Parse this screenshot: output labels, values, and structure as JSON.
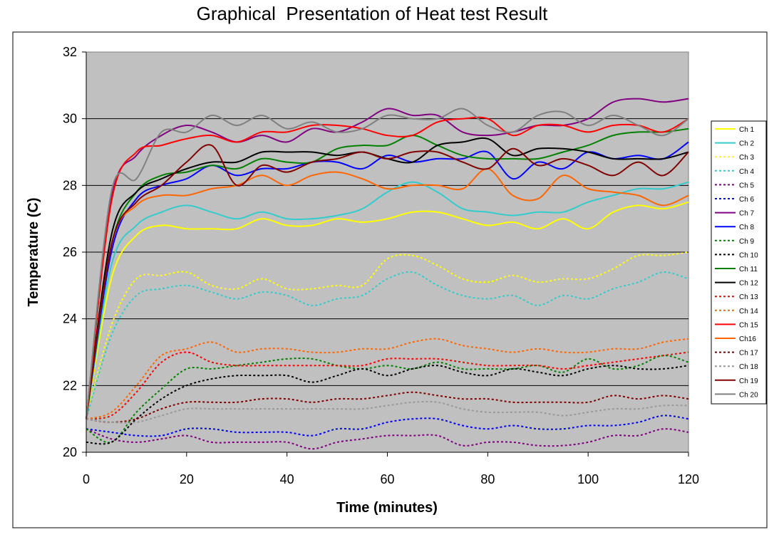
{
  "chart_data": {
    "type": "line",
    "title": "Graphical  Presentation of Heat test Result",
    "xlabel": "Time (minutes)",
    "ylabel": "Temperature (C)",
    "xlim": [
      0,
      120
    ],
    "ylim": [
      20,
      32
    ],
    "x_ticks": [
      "0",
      "20",
      "40",
      "60",
      "80",
      "100",
      "120"
    ],
    "y_ticks": [
      "20",
      "22",
      "24",
      "26",
      "28",
      "30",
      "32"
    ],
    "grid": "horizontal",
    "plot_background": "#c0c0c0",
    "legend_position": "right",
    "x": [
      0,
      5,
      10,
      15,
      20,
      25,
      30,
      35,
      40,
      45,
      50,
      55,
      60,
      65,
      70,
      75,
      80,
      85,
      90,
      95,
      100,
      105,
      110,
      115,
      120
    ],
    "series": [
      {
        "name": "Ch 1",
        "color": "#ffff00",
        "dash": "solid",
        "values": [
          21.0,
          25.2,
          26.5,
          26.8,
          26.7,
          26.7,
          26.7,
          27.0,
          26.8,
          26.8,
          27.0,
          26.9,
          27.0,
          27.2,
          27.2,
          27.0,
          26.8,
          26.9,
          26.7,
          27.0,
          26.7,
          27.2,
          27.4,
          27.3,
          27.5
        ]
      },
      {
        "name": "Ch 2",
        "color": "#33cccc",
        "dash": "solid",
        "values": [
          21.0,
          25.6,
          26.8,
          27.2,
          27.4,
          27.2,
          27.0,
          27.2,
          27.0,
          27.0,
          27.1,
          27.3,
          27.8,
          28.1,
          27.8,
          27.3,
          27.2,
          27.1,
          27.2,
          27.2,
          27.5,
          27.7,
          27.9,
          27.9,
          28.1
        ]
      },
      {
        "name": "Ch 3",
        "color": "#ffff00",
        "dash": "dashed",
        "values": [
          21.0,
          23.8,
          25.2,
          25.3,
          25.4,
          25.0,
          24.9,
          25.2,
          24.9,
          24.9,
          25.0,
          25.0,
          25.8,
          25.9,
          25.6,
          25.2,
          25.1,
          25.3,
          25.1,
          25.2,
          25.2,
          25.5,
          25.9,
          25.9,
          26.0
        ]
      },
      {
        "name": "Ch 4",
        "color": "#33cccc",
        "dash": "dashed",
        "values": [
          21.0,
          23.5,
          24.7,
          24.9,
          25.0,
          24.8,
          24.6,
          24.8,
          24.7,
          24.4,
          24.6,
          24.7,
          25.2,
          25.4,
          25.0,
          24.7,
          24.6,
          24.7,
          24.4,
          24.7,
          24.6,
          24.9,
          25.1,
          25.4,
          25.2
        ]
      },
      {
        "name": "Ch 5",
        "color": "#800080",
        "dash": "dashed",
        "values": [
          20.7,
          20.4,
          20.3,
          20.4,
          20.5,
          20.3,
          20.3,
          20.3,
          20.3,
          20.1,
          20.3,
          20.4,
          20.5,
          20.5,
          20.5,
          20.2,
          20.3,
          20.3,
          20.2,
          20.2,
          20.3,
          20.5,
          20.5,
          20.7,
          20.6
        ]
      },
      {
        "name": "Ch 6",
        "color": "#0000ff",
        "dash": "dashed",
        "values": [
          20.7,
          20.6,
          20.5,
          20.5,
          20.7,
          20.7,
          20.6,
          20.6,
          20.6,
          20.5,
          20.7,
          20.7,
          20.9,
          21.0,
          21.0,
          20.8,
          20.7,
          20.8,
          20.7,
          20.7,
          20.8,
          20.8,
          20.9,
          21.1,
          21.0
        ]
      },
      {
        "name": "Ch 7",
        "color": "#800080",
        "dash": "solid",
        "values": [
          21.0,
          27.6,
          28.9,
          29.5,
          29.8,
          29.6,
          29.3,
          29.5,
          29.3,
          29.7,
          29.6,
          29.9,
          30.3,
          30.1,
          30.1,
          29.6,
          29.5,
          29.6,
          29.8,
          29.8,
          30.0,
          30.5,
          30.6,
          30.5,
          30.6
        ]
      },
      {
        "name": "Ch 8",
        "color": "#0000ff",
        "dash": "solid",
        "values": [
          21.0,
          26.0,
          27.6,
          28.0,
          28.2,
          28.6,
          28.3,
          28.5,
          28.5,
          28.7,
          28.7,
          28.5,
          28.9,
          28.7,
          28.8,
          28.8,
          29.0,
          28.2,
          28.7,
          28.5,
          29.0,
          28.8,
          28.9,
          28.8,
          29.3
        ]
      },
      {
        "name": "Ch 9",
        "color": "#008000",
        "dash": "dashed",
        "values": [
          20.7,
          20.3,
          21.2,
          21.9,
          22.5,
          22.5,
          22.6,
          22.7,
          22.8,
          22.8,
          22.6,
          22.5,
          22.6,
          22.5,
          22.7,
          22.5,
          22.5,
          22.5,
          22.6,
          22.4,
          22.8,
          22.5,
          22.6,
          22.9,
          22.7
        ]
      },
      {
        "name": "Ch 10",
        "color": "#000000",
        "dash": "dashed",
        "values": [
          20.3,
          20.3,
          21.0,
          21.6,
          22.0,
          22.2,
          22.3,
          22.3,
          22.3,
          22.1,
          22.3,
          22.5,
          22.3,
          22.5,
          22.6,
          22.4,
          22.3,
          22.5,
          22.4,
          22.3,
          22.5,
          22.6,
          22.5,
          22.5,
          22.6
        ]
      },
      {
        "name": "Ch 11",
        "color": "#008000",
        "dash": "solid",
        "values": [
          21.0,
          26.2,
          27.8,
          28.3,
          28.4,
          28.6,
          28.5,
          28.8,
          28.7,
          28.7,
          29.1,
          29.2,
          29.2,
          29.5,
          29.2,
          28.9,
          28.8,
          28.8,
          28.8,
          29.0,
          29.2,
          29.5,
          29.6,
          29.6,
          29.7
        ]
      },
      {
        "name": "Ch 12",
        "color": "#000000",
        "dash": "solid",
        "values": [
          21.0,
          26.5,
          27.8,
          28.2,
          28.5,
          28.7,
          28.7,
          29.0,
          29.0,
          29.0,
          28.9,
          29.0,
          28.8,
          28.7,
          29.2,
          29.3,
          29.4,
          28.9,
          29.1,
          29.1,
          29.0,
          28.8,
          28.8,
          28.8,
          29.0
        ]
      },
      {
        "name": "Ch 13",
        "color": "#ff0000",
        "dash": "dashed",
        "values": [
          21.0,
          21.1,
          21.8,
          22.7,
          23.0,
          22.7,
          22.6,
          22.6,
          22.6,
          22.6,
          22.6,
          22.6,
          22.8,
          22.8,
          22.8,
          22.7,
          22.6,
          22.6,
          22.6,
          22.5,
          22.6,
          22.7,
          22.8,
          22.9,
          23.0
        ]
      },
      {
        "name": "Ch 14",
        "color": "#ff6600",
        "dash": "dashed",
        "values": [
          21.0,
          21.2,
          22.0,
          22.9,
          23.1,
          23.3,
          23.0,
          23.1,
          23.1,
          23.0,
          23.0,
          23.1,
          23.1,
          23.3,
          23.4,
          23.2,
          23.1,
          23.0,
          23.1,
          23.0,
          23.0,
          23.1,
          23.1,
          23.3,
          23.4
        ]
      },
      {
        "name": "Ch 15",
        "color": "#ff0000",
        "dash": "solid",
        "values": [
          21.0,
          27.5,
          29.0,
          29.2,
          29.4,
          29.5,
          29.3,
          29.6,
          29.6,
          29.8,
          29.8,
          29.7,
          29.5,
          29.5,
          29.9,
          30.0,
          30.0,
          29.5,
          29.8,
          29.8,
          29.6,
          29.8,
          29.8,
          29.6,
          30.0
        ]
      },
      {
        "name": "Ch16",
        "color": "#ff6600",
        "dash": "solid",
        "values": [
          21.0,
          26.2,
          27.4,
          27.7,
          27.7,
          27.9,
          28.0,
          28.3,
          28.0,
          28.3,
          28.4,
          28.2,
          27.9,
          28.0,
          28.0,
          27.9,
          28.5,
          27.7,
          27.6,
          28.3,
          27.9,
          27.8,
          27.7,
          27.4,
          27.7
        ]
      },
      {
        "name": "Ch 17",
        "color": "#800000",
        "dash": "dashed",
        "values": [
          21.0,
          20.9,
          21.0,
          21.3,
          21.5,
          21.5,
          21.5,
          21.6,
          21.6,
          21.5,
          21.6,
          21.6,
          21.7,
          21.8,
          21.7,
          21.6,
          21.6,
          21.5,
          21.5,
          21.5,
          21.5,
          21.7,
          21.6,
          21.7,
          21.6
        ]
      },
      {
        "name": "Ch 18",
        "color": "#999999",
        "dash": "dashed",
        "values": [
          21.0,
          20.9,
          20.9,
          21.1,
          21.3,
          21.3,
          21.3,
          21.3,
          21.3,
          21.3,
          21.3,
          21.3,
          21.4,
          21.5,
          21.5,
          21.3,
          21.2,
          21.2,
          21.2,
          21.1,
          21.2,
          21.3,
          21.3,
          21.4,
          21.4
        ]
      },
      {
        "name": "Ch 19",
        "color": "#800000",
        "dash": "solid",
        "values": [
          21.0,
          26.2,
          27.5,
          28.0,
          28.7,
          29.2,
          28.0,
          28.6,
          28.4,
          28.7,
          28.8,
          29.0,
          28.8,
          29.0,
          29.0,
          28.7,
          28.5,
          29.1,
          28.6,
          28.8,
          28.6,
          28.3,
          28.7,
          28.3,
          29.0
        ]
      },
      {
        "name": "Ch 20",
        "color": "#808080",
        "dash": "solid",
        "values": [
          21.0,
          27.8,
          28.2,
          29.6,
          29.6,
          30.1,
          29.8,
          30.1,
          29.7,
          29.9,
          29.6,
          29.7,
          30.1,
          30.0,
          30.0,
          30.3,
          29.8,
          29.6,
          30.1,
          30.2,
          29.8,
          30.1,
          29.8,
          29.5,
          30.0
        ]
      }
    ]
  }
}
